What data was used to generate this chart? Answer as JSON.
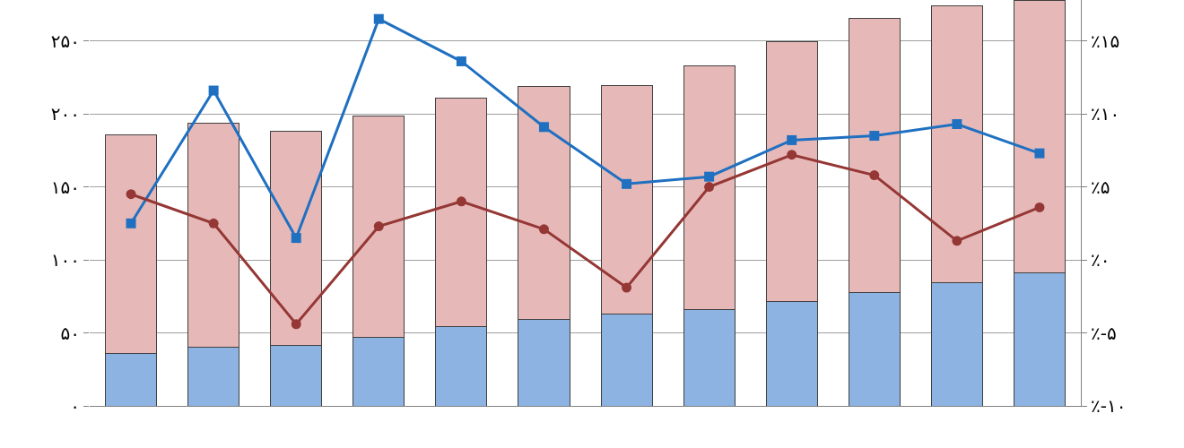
{
  "chart_data": {
    "type": "bar",
    "stacked": true,
    "grid": "y",
    "categories": [
      null,
      null,
      null,
      null,
      null,
      null,
      null,
      null,
      null,
      null,
      null,
      null
    ],
    "series": [
      {
        "color": "#8db3e2",
        "values": [
          35.6,
          39.9,
          41.2,
          46.7,
          54.1,
          59,
          62.7,
          65.7,
          71.3,
          77.4,
          84.2,
          90.9
        ]
      },
      {
        "color": "#e6b9b8",
        "values": [
          150,
          154,
          147,
          152,
          157,
          160,
          157,
          167,
          178,
          188,
          190,
          187
        ]
      },
      {
        "type": "line",
        "axis": "y2",
        "marker": "square",
        "color": "#1f70c1",
        "values": [
          2.5,
          11.6,
          1.5,
          16.5,
          13.6,
          9.1,
          5.2,
          5.7,
          8.2,
          8.5,
          9.3,
          7.3
        ]
      },
      {
        "type": "line",
        "axis": "y2",
        "marker": "circle",
        "color": "#953735",
        "values": [
          4.5,
          2.5,
          -4.4,
          2.3,
          4.0,
          2.1,
          -1.9,
          5.0,
          7.2,
          5.8,
          1.3,
          3.6
        ]
      }
    ],
    "ylim": [
      0,
      278
    ],
    "yticks": [
      {
        "value": 0,
        "label": "۰"
      },
      {
        "value": 50,
        "label": "۵۰"
      },
      {
        "value": 100,
        "label": "۱۰۰"
      },
      {
        "value": 150,
        "label": "۱۵۰"
      },
      {
        "value": 200,
        "label": "۲۰۰"
      },
      {
        "value": 250,
        "label": "۲۵۰"
      }
    ],
    "y2lim": [
      -10,
      17.8
    ],
    "y2ticks": [
      {
        "value": -10,
        "label": "٪-۱۰"
      },
      {
        "value": -5,
        "label": "٪-۵"
      },
      {
        "value": 0,
        "label": "٪۰"
      },
      {
        "value": 5,
        "label": "٪۵"
      },
      {
        "value": 10,
        "label": "٪۱۰"
      },
      {
        "value": 15,
        "label": "٪۱۵"
      }
    ]
  }
}
